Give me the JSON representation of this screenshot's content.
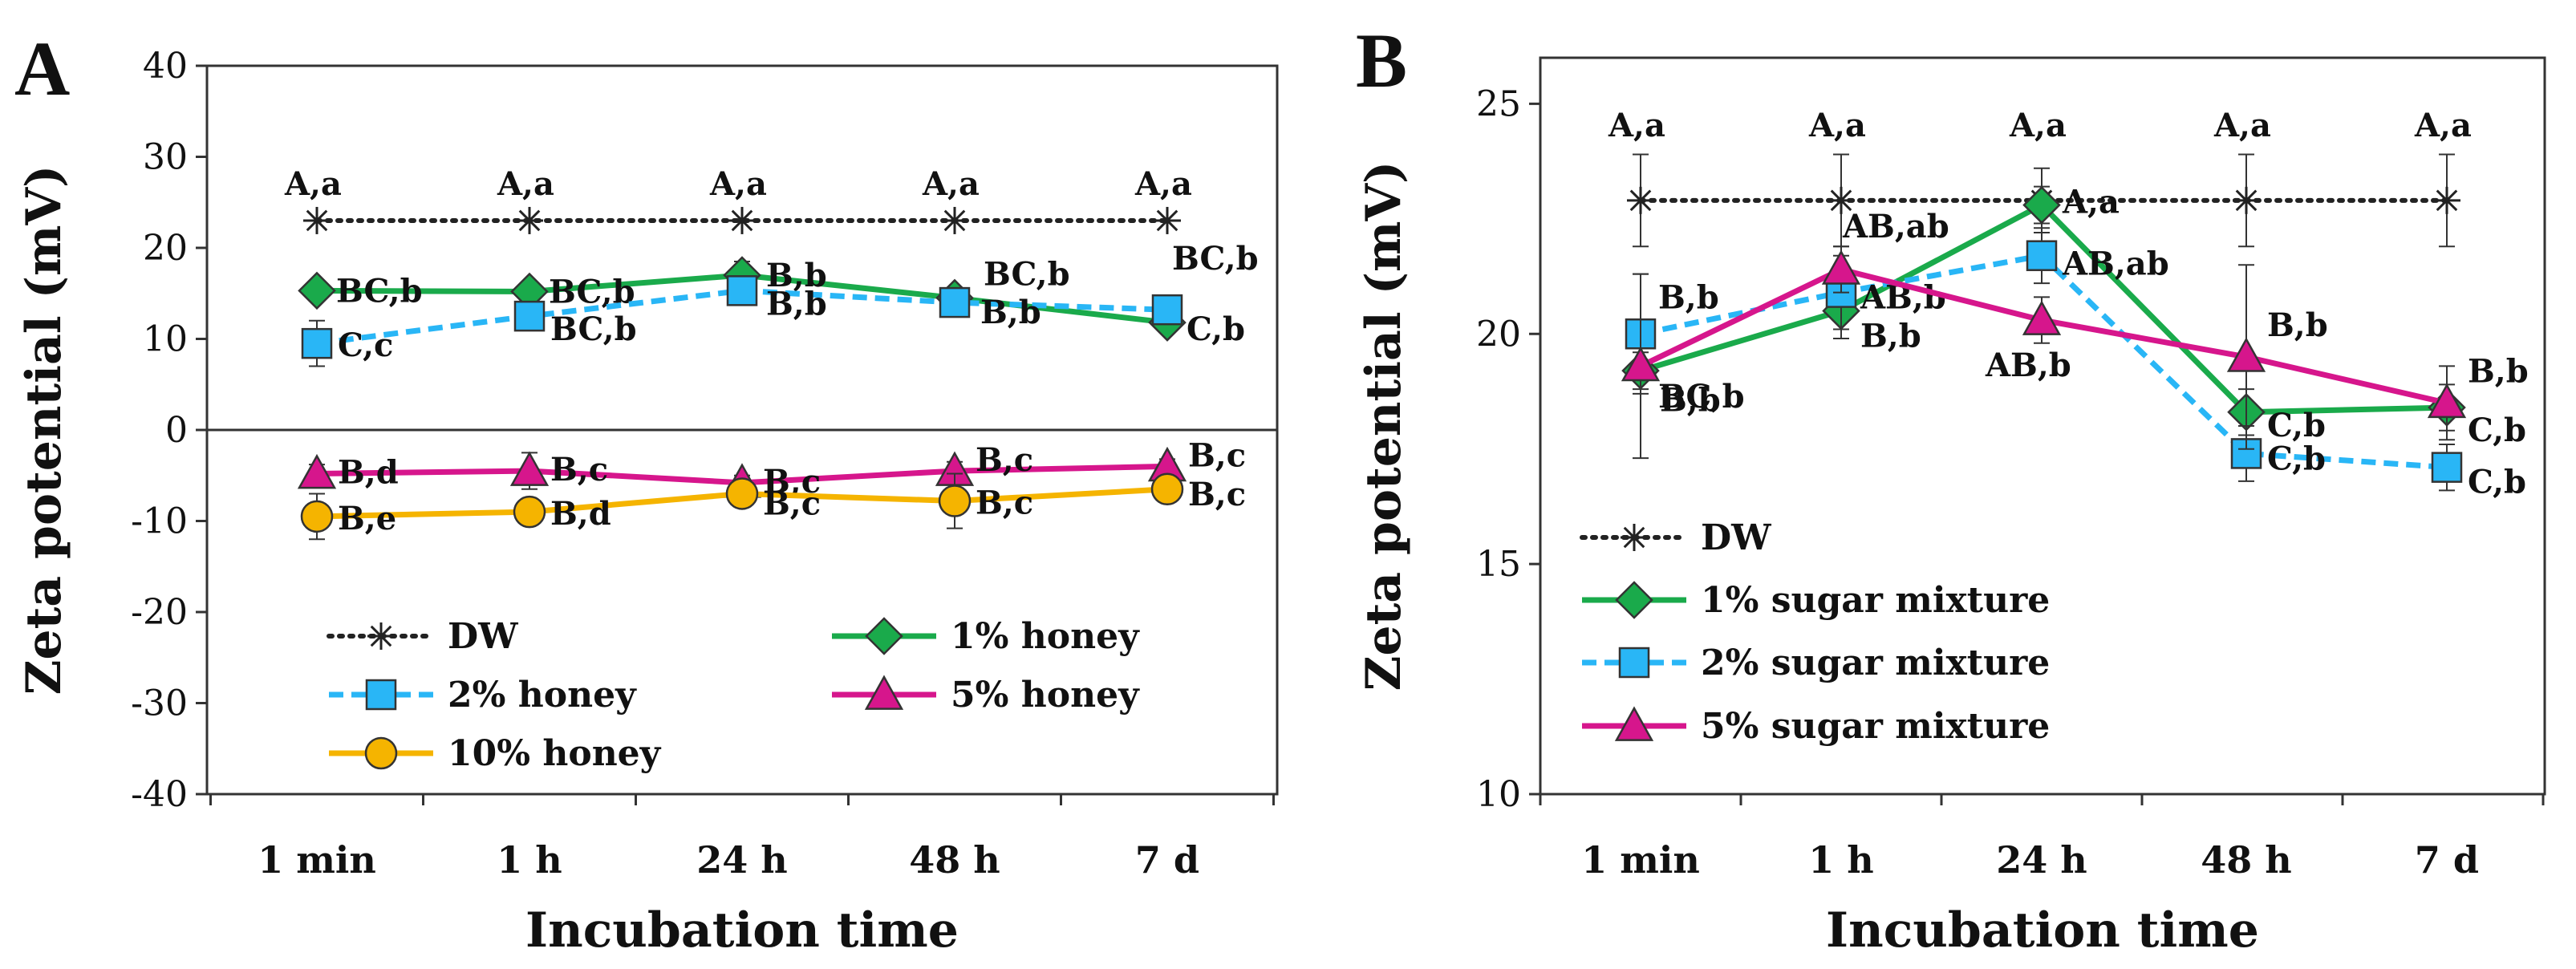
{
  "colors": {
    "dw": "#222222",
    "one_pct": "#1aaa4b",
    "two_pct": "#29b6f6",
    "five_pct": "#d6168c",
    "ten_pct": "#f5b400",
    "marker_outline": "#333333",
    "axis": "#333333",
    "background": "#ffffff"
  },
  "chart_data": [
    {
      "panel": "A",
      "type": "line",
      "ylabel": "Zeta potential (mV)",
      "xlabel": "Incubation time",
      "categories": [
        "1 min",
        "1 h",
        "24 h",
        "48 h",
        "7 d"
      ],
      "ylim": [
        -40,
        40
      ],
      "yticks": [
        40,
        30,
        20,
        10,
        0,
        -10,
        -20,
        -30,
        -40
      ],
      "grid": false,
      "legend_position": "bottom-left inside",
      "series": [
        {
          "key": "dw",
          "name": "DW",
          "marker": "asterisk",
          "line": "dotted",
          "values": [
            23,
            23,
            23,
            23,
            23
          ],
          "errors": [
            0,
            0,
            0,
            0,
            0
          ],
          "labels": [
            "A,a",
            "A,a",
            "A,a",
            "A,a",
            "A,a"
          ]
        },
        {
          "key": "one_pct",
          "name": "1% honey",
          "marker": "diamond",
          "line": "solid",
          "values": [
            15.3,
            15.2,
            17,
            14.5,
            11.8
          ],
          "errors": [
            0,
            0,
            1.5,
            1,
            0.8
          ],
          "labels": [
            "BC,b",
            "BC,b",
            "B,b",
            "BC,b",
            "C,b"
          ]
        },
        {
          "key": "two_pct",
          "name": "2% honey",
          "marker": "square",
          "line": "dashed",
          "values": [
            9.5,
            12.5,
            15.3,
            14,
            13.2
          ],
          "errors": [
            2.5,
            1,
            1,
            0.8,
            0.8
          ],
          "labels": [
            "C,c",
            "BC,b",
            "B,b",
            "B,b",
            "BC,b"
          ]
        },
        {
          "key": "five_pct",
          "name": "5% honey",
          "marker": "triangle",
          "line": "solid",
          "values": [
            -4.8,
            -4.5,
            -5.8,
            -4.5,
            -4
          ],
          "errors": [
            1,
            2,
            0.8,
            1,
            0.8
          ],
          "labels": [
            "B,d",
            "B,c",
            "B,c",
            "B,c",
            "B,c"
          ]
        },
        {
          "key": "ten_pct",
          "name": "10% honey",
          "marker": "circle",
          "line": "solid",
          "values": [
            -9.5,
            -9,
            -7,
            -7.8,
            -6.5
          ],
          "errors": [
            2.5,
            1,
            1,
            3,
            1
          ],
          "labels": [
            "B,e",
            "B,d",
            "B,c",
            "B,c",
            "B,c"
          ]
        }
      ],
      "legend": [
        {
          "key": "dw",
          "label": "DW"
        },
        {
          "key": "one_pct",
          "label": "1% honey"
        },
        {
          "key": "two_pct",
          "label": "2% honey"
        },
        {
          "key": "five_pct",
          "label": "5% honey"
        },
        {
          "key": "ten_pct",
          "label": "10% honey"
        }
      ]
    },
    {
      "panel": "B",
      "type": "line",
      "ylabel": "Zeta potential (mV)",
      "xlabel": "Incubation time",
      "categories": [
        "1 min",
        "1 h",
        "24 h",
        "48 h",
        "7 d"
      ],
      "ylim": [
        10,
        26
      ],
      "yticks": [
        25,
        20,
        15,
        10
      ],
      "grid": false,
      "legend_position": "bottom-left inside",
      "series": [
        {
          "key": "dw",
          "name": "DW",
          "marker": "asterisk",
          "line": "dotted",
          "values": [
            22.9,
            22.9,
            22.9,
            22.9,
            22.9
          ],
          "errors": [
            1,
            1,
            0.7,
            1,
            1
          ],
          "labels": [
            "A,a",
            "A,a",
            "A,a",
            "A,a",
            "A,a"
          ]
        },
        {
          "key": "one_pct",
          "name": "1% sugar mixture",
          "marker": "diamond",
          "line": "solid",
          "values": [
            19.2,
            20.5,
            22.8,
            18.3,
            18.4
          ],
          "errors": [
            0.4,
            0.6,
            0.4,
            0.5,
            0.5
          ],
          "labels": [
            "BC,b",
            "B,b",
            "A,a",
            "C,b",
            "C,b"
          ]
        },
        {
          "key": "two_pct",
          "name": "2% sugar mixture",
          "marker": "square",
          "line": "dashed",
          "values": [
            20,
            20.9,
            21.7,
            17.4,
            17.1
          ],
          "errors": [
            1.3,
            0.8,
            0.6,
            0.6,
            0.5
          ],
          "labels": [
            "B,b",
            "AB,b",
            "AB,ab",
            "C,b",
            "C,b"
          ]
        },
        {
          "key": "five_pct",
          "name": "5% sugar mixture",
          "marker": "triangle",
          "line": "solid",
          "values": [
            19.3,
            21.4,
            20.3,
            19.5,
            18.5
          ],
          "errors": [
            2,
            0.5,
            0.5,
            2,
            0.8
          ],
          "labels": [
            "B,b",
            "AB,ab",
            "AB,b",
            "B,b",
            "B,b"
          ]
        }
      ],
      "legend": [
        {
          "key": "dw",
          "label": "DW"
        },
        {
          "key": "one_pct",
          "label": "1% sugar mixture"
        },
        {
          "key": "two_pct",
          "label": "2% sugar mixture"
        },
        {
          "key": "five_pct",
          "label": "5% sugar mixture"
        }
      ]
    }
  ]
}
